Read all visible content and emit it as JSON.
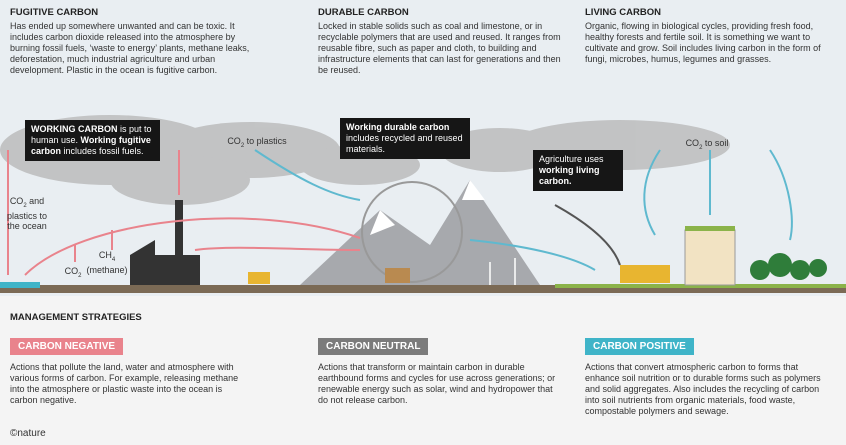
{
  "columns": [
    {
      "title": "FUGITIVE CARBON",
      "text": "Has ended up somewhere unwanted and can be toxic. It includes carbon dioxide released into the atmosphere by burning fossil fuels, ‘waste to energy’ plants, methane leaks, deforestation, much industrial agriculture and urban development. Plastic in the ocean is fugitive carbon."
    },
    {
      "title": "DURABLE CARBON",
      "text": "Locked in stable solids such as coal and limestone, or in recyclable polymers that are used and reused. It ranges from reusable fibre, such as paper and cloth, to building and infrastructure elements that can last for generations and then be reused."
    },
    {
      "title": "LIVING CARBON",
      "text": "Organic, flowing in biological cycles, providing fresh food, healthy forests and fertile soil. It is something we want to cultivate and grow. Soil includes living carbon in the form of fungi, microbes, humus, legumes and grasses."
    }
  ],
  "callouts": [
    {
      "parts": [
        {
          "text": "WORKING CARBON",
          "bold": true
        },
        {
          "text": " is put to human use. "
        },
        {
          "text": "Working fugitive carbon",
          "bold": true
        },
        {
          "text": " includes fossil fuels."
        }
      ]
    },
    {
      "parts": [
        {
          "text": "Working durable carbon",
          "bold": true
        },
        {
          "text": " includes recycled and reused materials."
        }
      ]
    },
    {
      "parts": [
        {
          "text": "Agriculture uses "
        },
        {
          "text": "working living carbon.",
          "bold": true
        }
      ]
    }
  ],
  "labels": [
    {
      "parts": [
        {
          "text": "CO"
        },
        {
          "text": "2",
          "sub": true
        },
        {
          "text": " to plastics"
        }
      ]
    },
    {
      "parts": [
        {
          "text": "CO"
        },
        {
          "text": "2",
          "sub": true
        },
        {
          "text": " to soil"
        }
      ]
    },
    {
      "parts": [
        {
          "text": "CO"
        },
        {
          "text": "2",
          "sub": true
        },
        {
          "text": " and plastics to the ocean"
        }
      ]
    },
    {
      "parts": [
        {
          "text": "CH"
        },
        {
          "text": "4",
          "sub": true
        },
        {
          "text": " (methane)"
        }
      ]
    },
    {
      "parts": [
        {
          "text": "CO"
        },
        {
          "text": "2",
          "sub": true
        }
      ]
    }
  ],
  "management": {
    "title": "MANAGEMENT STRATEGIES",
    "strategies": [
      {
        "label": "CARBON NEGATIVE",
        "color": "#e9838c",
        "text": "Actions that pollute the land, water and atmosphere with various forms of carbon. For example, releasing methane into the atmosphere or plastic waste into the ocean is carbon negative."
      },
      {
        "label": "CARBON NEUTRAL",
        "color": "#7b7b7b",
        "text": "Actions that transform or maintain carbon in durable earthbound forms and cycles for use across generations; or renewable energy such as solar, wind and hydropower that do not release carbon."
      },
      {
        "label": "CARBON POSITIVE",
        "color": "#3fb4c8",
        "text": "Actions that convert atmospheric carbon to forms that enhance soil nutrition or to durable forms such as polymers and solid aggregates. Also includes the recycling of carbon into soil nutrients from organic materials, food waste, compostable polymers and sewage."
      }
    ]
  },
  "footer": "©nature"
}
